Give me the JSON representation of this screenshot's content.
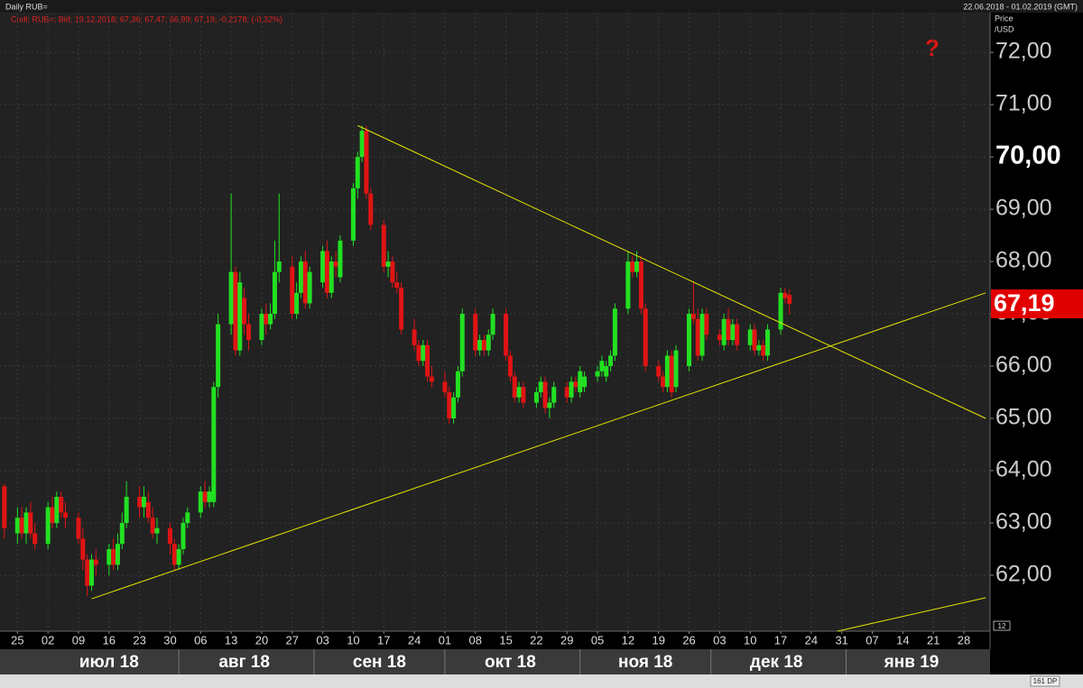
{
  "chart_data": {
    "type": "candlestick",
    "title": "Daily RUB=",
    "date_range": "22.06.2018 - 01.02.2019 (GMT)",
    "legend_text": "Cndl; RUB=; Bid; 19.12.2018; 67,36; 67,47; 66,99; 67,19; -0,2178; (-0,32%)",
    "y_label": "Price",
    "y_unit": "/USD",
    "marker_text": "?",
    "dp_text": "161 DP",
    "corner_text": "12",
    "up_color": "#22e022",
    "down_color": "#e01414",
    "trendline_color": "#e6e600",
    "grid": true,
    "xlim": [
      "2018-06-21",
      "2019-02-03"
    ],
    "ylim": [
      60.93,
      72.76
    ],
    "yticks": [
      {
        "value": 62,
        "label": "62,00"
      },
      {
        "value": 63,
        "label": "63,00"
      },
      {
        "value": 64,
        "label": "64,00"
      },
      {
        "value": 65,
        "label": "65,00"
      },
      {
        "value": 66,
        "label": "66,00"
      },
      {
        "value": 67,
        "label": "67,00"
      },
      {
        "value": 68,
        "label": "68,00"
      },
      {
        "value": 69,
        "label": "69,00"
      },
      {
        "value": 70,
        "label": "70,00"
      },
      {
        "value": 71,
        "label": "71,00"
      },
      {
        "value": 72,
        "label": "72,00"
      }
    ],
    "emphasized_ytick": 70,
    "last_price": {
      "value": 67.19,
      "label": "67,19"
    },
    "xticks": [
      {
        "value": "2018-06-25",
        "label": "25"
      },
      {
        "value": "2018-07-02",
        "label": "02"
      },
      {
        "value": "2018-07-09",
        "label": "09"
      },
      {
        "value": "2018-07-16",
        "label": "16"
      },
      {
        "value": "2018-07-23",
        "label": "23"
      },
      {
        "value": "2018-07-30",
        "label": "30"
      },
      {
        "value": "2018-08-06",
        "label": "06"
      },
      {
        "value": "2018-08-13",
        "label": "13"
      },
      {
        "value": "2018-08-20",
        "label": "20"
      },
      {
        "value": "2018-08-27",
        "label": "27"
      },
      {
        "value": "2018-09-03",
        "label": "03"
      },
      {
        "value": "2018-09-10",
        "label": "10"
      },
      {
        "value": "2018-09-17",
        "label": "17"
      },
      {
        "value": "2018-09-24",
        "label": "24"
      },
      {
        "value": "2018-10-01",
        "label": "01"
      },
      {
        "value": "2018-10-08",
        "label": "08"
      },
      {
        "value": "2018-10-15",
        "label": "15"
      },
      {
        "value": "2018-10-22",
        "label": "22"
      },
      {
        "value": "2018-10-29",
        "label": "29"
      },
      {
        "value": "2018-11-05",
        "label": "05"
      },
      {
        "value": "2018-11-12",
        "label": "12"
      },
      {
        "value": "2018-11-19",
        "label": "19"
      },
      {
        "value": "2018-11-26",
        "label": "26"
      },
      {
        "value": "2018-12-03",
        "label": "03"
      },
      {
        "value": "2018-12-10",
        "label": "10"
      },
      {
        "value": "2018-12-17",
        "label": "17"
      },
      {
        "value": "2018-12-24",
        "label": "24"
      },
      {
        "value": "2018-12-31",
        "label": "31"
      },
      {
        "value": "2019-01-07",
        "label": "07"
      },
      {
        "value": "2019-01-14",
        "label": "14"
      },
      {
        "value": "2019-01-21",
        "label": "21"
      },
      {
        "value": "2019-01-28",
        "label": "28"
      }
    ],
    "month_labels": [
      {
        "value": "2018-07-16",
        "start": "2018-07-01",
        "label": "июл 18"
      },
      {
        "value": "2018-08-16",
        "start": "2018-08-01",
        "label": "авг 18"
      },
      {
        "value": "2018-09-16",
        "start": "2018-09-01",
        "label": "сен 18"
      },
      {
        "value": "2018-10-16",
        "start": "2018-10-01",
        "label": "окт 18"
      },
      {
        "value": "2018-11-16",
        "start": "2018-11-01",
        "label": "ноя 18"
      },
      {
        "value": "2018-12-16",
        "start": "2018-12-01",
        "label": "дек 18"
      },
      {
        "value": "2019-01-16",
        "start": "2019-01-01",
        "label": "янв 19"
      }
    ],
    "trendlines": [
      {
        "x": [
          "2018-09-11",
          "2019-02-02"
        ],
        "y": [
          70.6,
          65.0
        ]
      },
      {
        "x": [
          "2018-07-12",
          "2019-02-02"
        ],
        "y": [
          61.55,
          67.4
        ]
      },
      {
        "x": [
          "2018-12-30",
          "2019-02-02"
        ],
        "y": [
          60.93,
          61.57
        ]
      }
    ],
    "x": [
      "2018-06-22",
      "2018-06-25",
      "2018-06-26",
      "2018-06-27",
      "2018-06-28",
      "2018-06-29",
      "2018-07-02",
      "2018-07-03",
      "2018-07-04",
      "2018-07-05",
      "2018-07-06",
      "2018-07-09",
      "2018-07-10",
      "2018-07-11",
      "2018-07-12",
      "2018-07-13",
      "2018-07-16",
      "2018-07-17",
      "2018-07-18",
      "2018-07-19",
      "2018-07-20",
      "2018-07-23",
      "2018-07-24",
      "2018-07-25",
      "2018-07-26",
      "2018-07-27",
      "2018-07-30",
      "2018-07-31",
      "2018-08-01",
      "2018-08-02",
      "2018-08-03",
      "2018-08-06",
      "2018-08-07",
      "2018-08-08",
      "2018-08-09",
      "2018-08-10",
      "2018-08-13",
      "2018-08-14",
      "2018-08-15",
      "2018-08-16",
      "2018-08-17",
      "2018-08-20",
      "2018-08-21",
      "2018-08-22",
      "2018-08-23",
      "2018-08-24",
      "2018-08-27",
      "2018-08-28",
      "2018-08-29",
      "2018-08-30",
      "2018-08-31",
      "2018-09-03",
      "2018-09-04",
      "2018-09-05",
      "2018-09-06",
      "2018-09-07",
      "2018-09-10",
      "2018-09-11",
      "2018-09-12",
      "2018-09-13",
      "2018-09-14",
      "2018-09-17",
      "2018-09-18",
      "2018-09-19",
      "2018-09-20",
      "2018-09-21",
      "2018-09-24",
      "2018-09-25",
      "2018-09-26",
      "2018-09-27",
      "2018-09-28",
      "2018-10-01",
      "2018-10-02",
      "2018-10-03",
      "2018-10-04",
      "2018-10-05",
      "2018-10-08",
      "2018-10-09",
      "2018-10-10",
      "2018-10-11",
      "2018-10-12",
      "2018-10-15",
      "2018-10-16",
      "2018-10-17",
      "2018-10-18",
      "2018-10-19",
      "2018-10-22",
      "2018-10-23",
      "2018-10-24",
      "2018-10-25",
      "2018-10-26",
      "2018-10-29",
      "2018-10-30",
      "2018-10-31",
      "2018-11-01",
      "2018-11-02",
      "2018-11-05",
      "2018-11-06",
      "2018-11-07",
      "2018-11-08",
      "2018-11-09",
      "2018-11-12",
      "2018-11-13",
      "2018-11-14",
      "2018-11-15",
      "2018-11-16",
      "2018-11-19",
      "2018-11-20",
      "2018-11-21",
      "2018-11-22",
      "2018-11-23",
      "2018-11-26",
      "2018-11-27",
      "2018-11-28",
      "2018-11-29",
      "2018-11-30",
      "2018-12-03",
      "2018-12-04",
      "2018-12-05",
      "2018-12-06",
      "2018-12-07",
      "2018-12-10",
      "2018-12-11",
      "2018-12-12",
      "2018-12-13",
      "2018-12-14",
      "2018-12-17",
      "2018-12-18",
      "2018-12-19"
    ],
    "ohlc": [
      [
        63.7,
        63.75,
        62.7,
        62.9
      ],
      [
        62.8,
        63.3,
        62.6,
        63.1
      ],
      [
        63.1,
        63.3,
        62.7,
        62.8
      ],
      [
        62.8,
        63.3,
        62.6,
        63.2
      ],
      [
        63.2,
        63.4,
        62.7,
        62.8
      ],
      [
        62.8,
        63.0,
        62.5,
        62.6
      ],
      [
        62.6,
        63.4,
        62.5,
        63.3
      ],
      [
        63.3,
        63.5,
        62.9,
        63.0
      ],
      [
        63.0,
        63.6,
        62.9,
        63.5
      ],
      [
        63.5,
        63.6,
        63.1,
        63.2
      ],
      [
        63.2,
        63.4,
        62.9,
        63.1
      ],
      [
        63.1,
        63.2,
        62.6,
        62.7
      ],
      [
        62.7,
        62.9,
        62.1,
        62.3
      ],
      [
        62.3,
        62.4,
        61.6,
        61.8
      ],
      [
        61.8,
        62.4,
        61.7,
        62.3
      ],
      [
        62.3,
        62.5,
        62.0,
        62.2
      ],
      [
        62.2,
        62.6,
        62.0,
        62.5
      ],
      [
        62.5,
        62.7,
        62.1,
        62.2
      ],
      [
        62.2,
        62.8,
        62.1,
        62.6
      ],
      [
        62.6,
        63.2,
        62.5,
        63.0
      ],
      [
        63.0,
        63.8,
        62.9,
        63.5
      ],
      [
        63.5,
        63.7,
        63.1,
        63.3
      ],
      [
        63.3,
        63.7,
        63.1,
        63.5
      ],
      [
        63.4,
        63.6,
        63.0,
        63.1
      ],
      [
        63.1,
        63.3,
        62.7,
        62.8
      ],
      [
        62.8,
        63.1,
        62.6,
        62.9
      ],
      [
        62.9,
        63.0,
        62.4,
        62.6
      ],
      [
        62.6,
        62.7,
        62.1,
        62.2
      ],
      [
        62.2,
        62.6,
        62.1,
        62.5
      ],
      [
        62.5,
        63.1,
        62.4,
        63.0
      ],
      [
        63.0,
        63.3,
        62.9,
        63.2
      ],
      [
        63.2,
        63.7,
        63.1,
        63.6
      ],
      [
        63.6,
        63.8,
        63.3,
        63.4
      ],
      [
        63.4,
        63.7,
        63.3,
        63.6
      ],
      [
        63.4,
        65.7,
        63.3,
        65.6
      ],
      [
        65.6,
        67.0,
        65.4,
        66.8
      ],
      [
        66.8,
        69.3,
        66.6,
        67.8
      ],
      [
        67.8,
        67.9,
        66.2,
        66.3
      ],
      [
        66.3,
        67.8,
        66.2,
        67.6
      ],
      [
        67.3,
        67.5,
        66.6,
        66.8
      ],
      [
        66.8,
        67.0,
        66.3,
        66.5
      ],
      [
        66.5,
        67.1,
        66.4,
        67.0
      ],
      [
        67.0,
        67.2,
        66.6,
        66.8
      ],
      [
        66.8,
        67.2,
        66.7,
        67.0
      ],
      [
        67.0,
        68.4,
        66.9,
        67.8
      ],
      [
        67.8,
        69.3,
        67.6,
        68.0
      ],
      [
        67.9,
        68.1,
        66.9,
        67.0
      ],
      [
        67.0,
        67.6,
        66.9,
        67.4
      ],
      [
        67.4,
        68.1,
        67.3,
        68.0
      ],
      [
        68.0,
        68.2,
        67.1,
        67.2
      ],
      [
        67.2,
        67.9,
        67.1,
        67.8
      ],
      [
        67.6,
        68.3,
        67.5,
        68.2
      ],
      [
        68.2,
        68.4,
        67.3,
        67.4
      ],
      [
        67.4,
        68.1,
        67.3,
        68.0
      ],
      [
        68.0,
        68.2,
        67.7,
        67.9
      ],
      [
        67.7,
        68.5,
        67.6,
        68.4
      ],
      [
        68.4,
        69.5,
        68.3,
        69.4
      ],
      [
        69.4,
        70.1,
        69.2,
        70.0
      ],
      [
        70.0,
        70.6,
        69.9,
        70.5
      ],
      [
        70.5,
        70.6,
        69.2,
        69.3
      ],
      [
        69.3,
        69.4,
        68.6,
        68.7
      ],
      [
        68.7,
        68.8,
        67.8,
        67.9
      ],
      [
        67.9,
        68.2,
        67.7,
        68.0
      ],
      [
        68.0,
        68.1,
        67.5,
        67.6
      ],
      [
        67.6,
        67.8,
        67.4,
        67.5
      ],
      [
        67.5,
        67.6,
        66.6,
        66.7
      ],
      [
        66.7,
        66.9,
        66.3,
        66.4
      ],
      [
        66.4,
        66.5,
        66.0,
        66.1
      ],
      [
        66.1,
        66.5,
        66.0,
        66.4
      ],
      [
        66.4,
        66.5,
        65.7,
        65.8
      ],
      [
        65.8,
        66.0,
        65.6,
        65.7
      ],
      [
        65.7,
        65.9,
        65.4,
        65.5
      ],
      [
        65.5,
        65.6,
        64.9,
        65.0
      ],
      [
        65.0,
        65.5,
        64.9,
        65.4
      ],
      [
        65.4,
        66.0,
        65.3,
        65.9
      ],
      [
        65.9,
        67.1,
        65.8,
        67.0
      ],
      [
        67.0,
        67.1,
        66.2,
        66.3
      ],
      [
        66.3,
        66.6,
        66.2,
        66.5
      ],
      [
        66.5,
        66.6,
        66.2,
        66.3
      ],
      [
        66.3,
        66.7,
        66.2,
        66.6
      ],
      [
        66.6,
        67.1,
        66.5,
        67.0
      ],
      [
        67.0,
        67.1,
        66.1,
        66.2
      ],
      [
        66.2,
        66.3,
        65.7,
        65.8
      ],
      [
        65.8,
        65.9,
        65.3,
        65.4
      ],
      [
        65.4,
        65.7,
        65.3,
        65.6
      ],
      [
        65.6,
        65.7,
        65.2,
        65.3
      ],
      [
        65.3,
        65.6,
        65.2,
        65.5
      ],
      [
        65.5,
        65.8,
        65.4,
        65.7
      ],
      [
        65.7,
        65.8,
        65.1,
        65.2
      ],
      [
        65.2,
        65.4,
        65.0,
        65.3
      ],
      [
        65.3,
        65.7,
        65.2,
        65.6
      ],
      [
        65.6,
        65.7,
        65.3,
        65.4
      ],
      [
        65.4,
        65.8,
        65.3,
        65.7
      ],
      [
        65.7,
        65.8,
        65.5,
        65.6
      ],
      [
        65.5,
        66.0,
        65.4,
        65.9
      ],
      [
        65.6,
        65.9,
        65.5,
        65.8
      ],
      [
        65.8,
        66.0,
        65.7,
        65.9
      ],
      [
        65.9,
        66.2,
        65.8,
        66.1
      ],
      [
        65.8,
        66.1,
        65.7,
        66.0
      ],
      [
        66.0,
        66.3,
        65.9,
        66.2
      ],
      [
        66.2,
        67.2,
        66.1,
        67.1
      ],
      [
        67.1,
        68.2,
        67.0,
        68.0
      ],
      [
        68.0,
        68.1,
        67.7,
        67.8
      ],
      [
        67.8,
        68.2,
        67.7,
        68.0
      ],
      [
        68.0,
        68.1,
        67.0,
        67.1
      ],
      [
        67.1,
        67.2,
        65.9,
        66.0
      ],
      [
        66.0,
        66.1,
        65.7,
        65.8
      ],
      [
        65.8,
        65.9,
        65.5,
        65.6
      ],
      [
        65.6,
        66.3,
        65.5,
        66.2
      ],
      [
        66.2,
        66.3,
        65.4,
        65.5
      ],
      [
        65.6,
        66.4,
        65.5,
        66.3
      ],
      [
        66.0,
        67.1,
        65.9,
        67.0
      ],
      [
        67.0,
        67.6,
        66.8,
        66.9
      ],
      [
        66.9,
        67.1,
        66.1,
        66.2
      ],
      [
        66.2,
        67.1,
        66.1,
        67.0
      ],
      [
        67.0,
        67.1,
        66.5,
        66.6
      ],
      [
        66.6,
        66.7,
        66.4,
        66.5
      ],
      [
        66.4,
        67.0,
        66.3,
        66.9
      ],
      [
        66.9,
        67.1,
        66.4,
        66.5
      ],
      [
        66.5,
        66.9,
        66.4,
        66.8
      ],
      [
        66.8,
        66.9,
        66.3,
        66.4
      ],
      [
        66.4,
        66.8,
        66.3,
        66.7
      ],
      [
        66.7,
        66.8,
        66.2,
        66.3
      ],
      [
        66.3,
        66.5,
        66.2,
        66.4
      ],
      [
        66.4,
        66.5,
        66.1,
        66.2
      ],
      [
        66.2,
        66.8,
        66.1,
        66.7
      ],
      [
        66.7,
        67.5,
        66.6,
        67.4
      ],
      [
        67.4,
        67.5,
        67.2,
        67.3
      ],
      [
        67.36,
        67.47,
        66.99,
        67.19
      ]
    ]
  }
}
